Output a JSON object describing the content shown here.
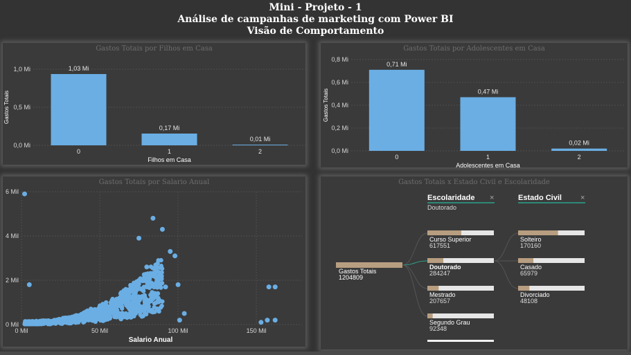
{
  "header": {
    "line1": "Mini - Projeto - 1",
    "line2": "Análise de campanhas de marketing com Power BI",
    "line3": "Visão de Comportamento"
  },
  "colors": {
    "bar": "#6aaee4",
    "background": "#333333",
    "panel": "#3a3a3a",
    "decomp_bar": "#b89e80",
    "accent_line": "#2aa58a"
  },
  "chart_data": [
    {
      "type": "bar",
      "title": "Gastos Totais por Filhos em Casa",
      "xlabel": "Filhos em Casa",
      "ylabel": "Gastos Totais",
      "categories": [
        "0",
        "1",
        "2"
      ],
      "values": [
        1.03,
        0.17,
        0.01
      ],
      "data_labels": [
        "1,03 Mi",
        "0,17 Mi",
        "0,01 Mi"
      ],
      "yticks": [
        "0,0 Mi",
        "0,5 Mi",
        "1,0 Mi"
      ],
      "ylim": [
        0,
        1.1
      ]
    },
    {
      "type": "bar",
      "title": "Gastos Totais por Adolescentes em Casa",
      "xlabel": "Adolescentes em Casa",
      "ylabel": "Gastos Totais",
      "categories": [
        "0",
        "1",
        "2"
      ],
      "values": [
        0.71,
        0.47,
        0.02
      ],
      "data_labels": [
        "0,71 Mi",
        "0,47 Mi",
        "0,02 Mi"
      ],
      "yticks": [
        "0,0 Mi",
        "0,2 Mi",
        "0,4 Mi",
        "0,6 Mi",
        "0,8 Mi"
      ],
      "ylim": [
        0,
        0.8
      ]
    },
    {
      "type": "scatter",
      "title": "Gastos Totais por Salario Anual",
      "xlabel": "Salario Anual",
      "xticks": [
        "0 Mil",
        "50 Mil",
        "100 Mil",
        "150 Mil"
      ],
      "yticks": [
        "0 Mil",
        "2 Mil",
        "4 Mil",
        "6 Mil"
      ],
      "xlim": [
        0,
        165
      ],
      "ylim": [
        0,
        6
      ],
      "outliers": [
        [
          2,
          5.9
        ],
        [
          5,
          1.8
        ],
        [
          64,
          1.1
        ],
        [
          70,
          1.7
        ],
        [
          75,
          3.9
        ],
        [
          80,
          2.6
        ],
        [
          84,
          4.8
        ],
        [
          87,
          1.4
        ],
        [
          90,
          4.3
        ],
        [
          92,
          1.7
        ],
        [
          95,
          3.3
        ],
        [
          98,
          3.1
        ],
        [
          100,
          1.8
        ],
        [
          101,
          0.2
        ],
        [
          104,
          0.5
        ],
        [
          153,
          0.1
        ],
        [
          157,
          0.2
        ],
        [
          158,
          1.7
        ],
        [
          162,
          1.7
        ],
        [
          162,
          0.2
        ]
      ]
    }
  ],
  "decomposition": {
    "title": "Gastos Totais x Estado Civil e Escolaridade",
    "root": {
      "label": "Gastos Totais",
      "value": "1204809"
    },
    "levels": [
      {
        "header": "Escolaridade",
        "selected": "Doutorado",
        "close": "×",
        "items": [
          {
            "label": "Curso Superior",
            "value": "617551",
            "fraction": 0.51
          },
          {
            "label": "Doutorado",
            "value": "284247",
            "fraction": 0.24
          },
          {
            "label": "Mestrado",
            "value": "207657",
            "fraction": 0.17
          },
          {
            "label": "Segundo Grau",
            "value": "92348",
            "fraction": 0.08
          }
        ]
      },
      {
        "header": "Estado Civil",
        "close": "×",
        "items": [
          {
            "label": "Solteiro",
            "value": "170160",
            "fraction": 0.6
          },
          {
            "label": "Casado",
            "value": "65979",
            "fraction": 0.23
          },
          {
            "label": "Divorciado",
            "value": "48108",
            "fraction": 0.17
          }
        ]
      }
    ]
  }
}
